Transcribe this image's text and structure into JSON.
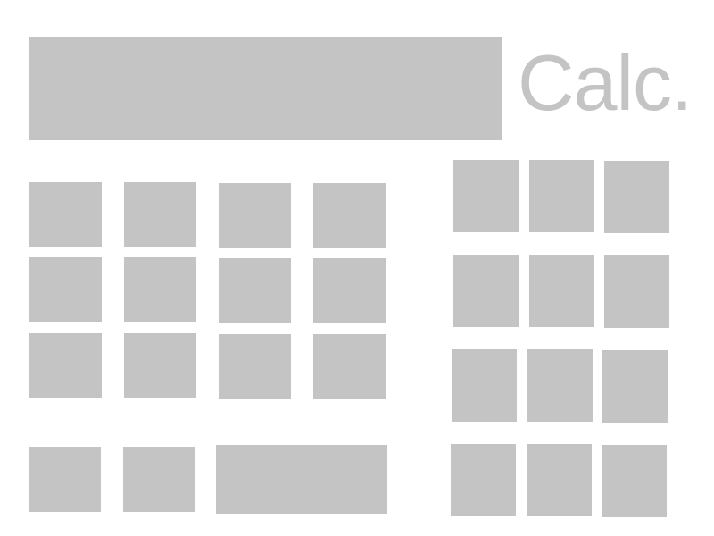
{
  "app": {
    "title": "Calc."
  },
  "display": {
    "value": ""
  },
  "colors": {
    "key_fill": "#c4c4c4",
    "title_text": "#c4c4c4",
    "background": "#ffffff"
  }
}
